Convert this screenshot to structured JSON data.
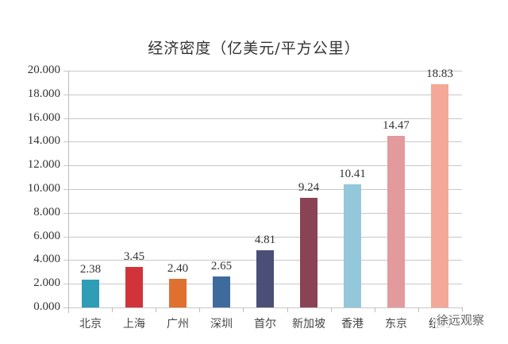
{
  "chart_data": {
    "type": "bar",
    "title": "经济密度（亿美元/平方公里）",
    "xlabel": "",
    "ylabel": "",
    "ylim": [
      0,
      20
    ],
    "yticks": [
      "0.000",
      "2.000",
      "4.000",
      "6.000",
      "8.000",
      "10.000",
      "12.000",
      "14.000",
      "16.000",
      "18.000",
      "20.000"
    ],
    "grid": true,
    "legend": null,
    "categories": [
      "北京",
      "上海",
      "广州",
      "深圳",
      "首尔",
      "新加坡",
      "香港",
      "东京",
      "纽约"
    ],
    "values": [
      2.38,
      3.45,
      2.4,
      2.65,
      4.81,
      9.24,
      10.41,
      14.47,
      18.83
    ],
    "value_labels": [
      "2.38",
      "3.45",
      "2.40",
      "2.65",
      "4.81",
      "9.24",
      "10.41",
      "14.47",
      "18.83"
    ],
    "colors": [
      "#2e9db5",
      "#d0343a",
      "#e0702f",
      "#3f6a9c",
      "#4b4f78",
      "#8a4355",
      "#93c8da",
      "#e39a9c",
      "#f4a898"
    ]
  },
  "watermark": "徐远观察"
}
